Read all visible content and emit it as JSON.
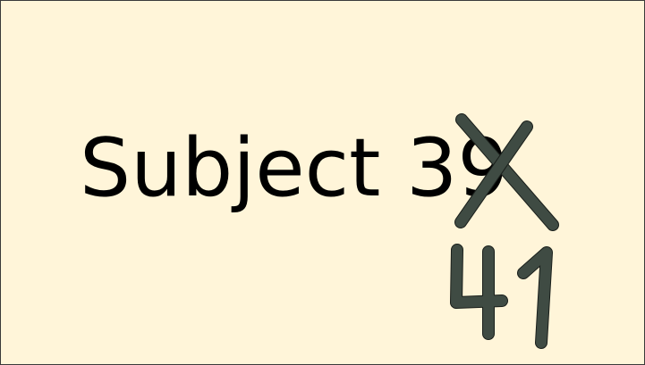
{
  "slide": {
    "text_prefix": "Subject ",
    "original_number": "39",
    "corrected_number": "41"
  },
  "colors": {
    "background": "#fff5d9",
    "text": "#000000",
    "ink_fill": "#3f4b43",
    "ink_outline": "#1a1f1b"
  }
}
